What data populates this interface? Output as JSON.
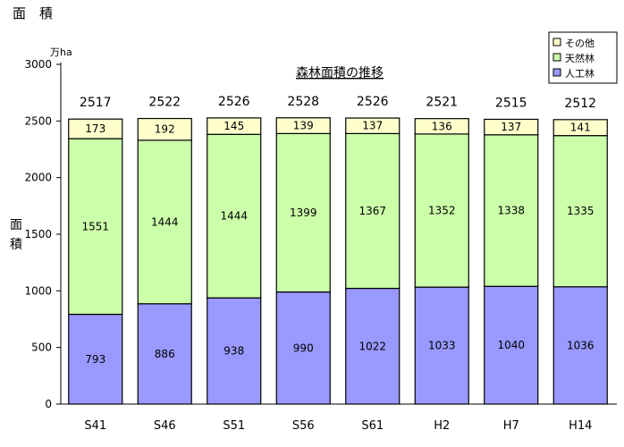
{
  "page_heading": "面　積",
  "chart_data": {
    "type": "bar",
    "stacked": true,
    "title": "森林面積の推移",
    "ylabel": "面積",
    "yunit": "万ha",
    "ylim": [
      0,
      3000
    ],
    "yticks": [
      0,
      500,
      1000,
      1500,
      2000,
      2500,
      3000
    ],
    "categories": [
      "S41",
      "S46",
      "S51",
      "S56",
      "S61",
      "H2",
      "H7",
      "H14"
    ],
    "series": [
      {
        "name": "人工林",
        "color": "#9999ff",
        "values": [
          793,
          886,
          938,
          990,
          1022,
          1033,
          1040,
          1036
        ]
      },
      {
        "name": "天然林",
        "color": "#ccffaa",
        "values": [
          1551,
          1444,
          1444,
          1399,
          1367,
          1352,
          1338,
          1335
        ]
      },
      {
        "name": "その他",
        "color": "#ffffcc",
        "values": [
          173,
          192,
          145,
          139,
          137,
          136,
          137,
          141
        ]
      }
    ],
    "totals": [
      2517,
      2522,
      2526,
      2528,
      2526,
      2521,
      2515,
      2512
    ],
    "legend_position": "top-right",
    "grid": false
  }
}
